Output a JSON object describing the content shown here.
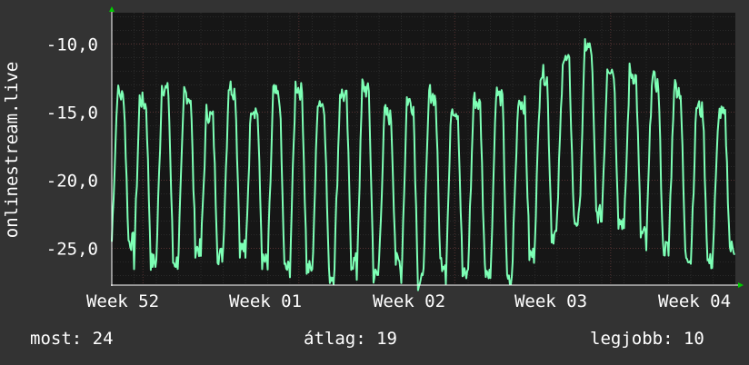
{
  "chart_data": {
    "type": "line",
    "ylabel": "onlinestream.live",
    "ylim": [
      -27.7,
      -7.7
    ],
    "y_ticks": [
      "-10,0",
      "-15,0",
      "-20,0",
      "-25,0"
    ],
    "y_tick_values": [
      -10,
      -15,
      -20,
      -25
    ],
    "x_ticks": [
      "Week 52",
      "Week 01",
      "Week 02",
      "Week 03",
      "Week 04"
    ],
    "grid": true,
    "colors": {
      "background": "#333333",
      "plot": "#161616",
      "line": "#7dffb5",
      "grid": "#2e2e2e",
      "axis": "#ffffff",
      "arrow": "#00cc00"
    },
    "series": [
      {
        "period_days": 1,
        "days": 28,
        "daily_peak": [
          -13.5,
          -14,
          -13,
          -13.5,
          -15,
          -13,
          -14.5,
          -13.5,
          -13,
          -14,
          -13.5,
          -13,
          -15,
          -14,
          -13.5,
          -14.5,
          -14,
          -13.5,
          -14,
          -12,
          -11,
          -10,
          -11.5,
          -12,
          -12.5,
          -13,
          -14.5,
          -15
        ],
        "daily_trough": [
          -24.5,
          -26,
          -26,
          -25,
          -25.5,
          -25,
          -26,
          -26.5,
          -26.5,
          -27,
          -26,
          -27,
          -26,
          -27.5,
          -26,
          -27,
          -26.5,
          -27.5,
          -25.5,
          -24,
          -23,
          -22.5,
          -23,
          -24,
          -25,
          -25.5,
          -26,
          -25
        ]
      }
    ]
  },
  "stats": {
    "now_label": "most:",
    "now_value": "24",
    "avg_label": "átlag:",
    "avg_value": "19",
    "max_label": "legjobb:",
    "max_value": "10"
  }
}
